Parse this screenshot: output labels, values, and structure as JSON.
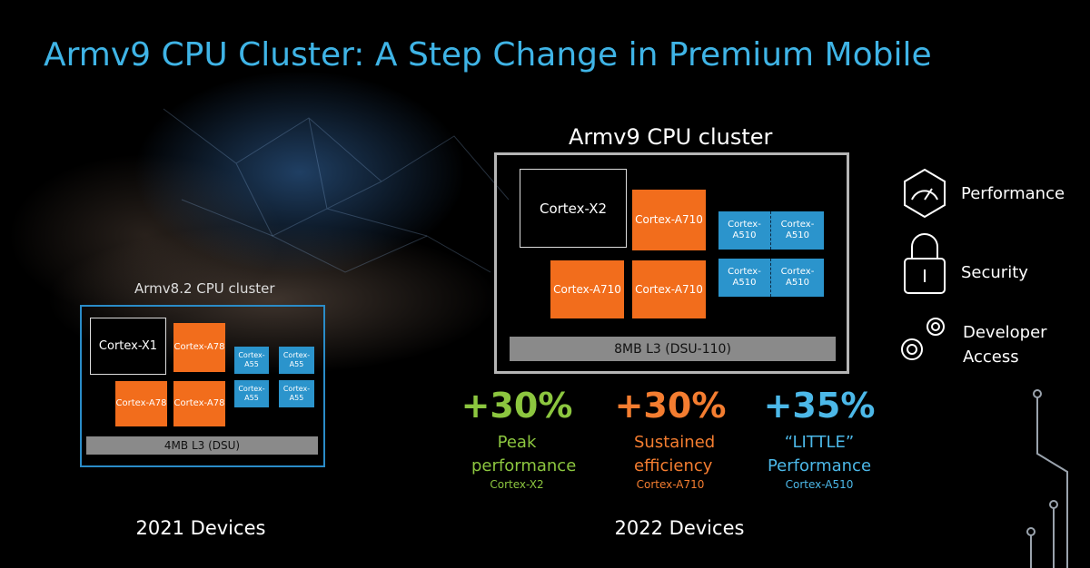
{
  "title": "Armv9 CPU Cluster: A Step Change in Premium Mobile",
  "left_cluster": {
    "label": "Armv8.2 CPU cluster",
    "cores": [
      "Cortex-X1",
      "Cortex-A78",
      "Cortex-A78",
      "Cortex-A78",
      "Cortex-A55",
      "Cortex-A55",
      "Cortex-A55",
      "Cortex-A55"
    ],
    "cache": "4MB L3 (DSU)"
  },
  "right_cluster": {
    "label": "Armv9 CPU cluster",
    "cores": [
      "Cortex-X2",
      "Cortex-A710",
      "Cortex-A710",
      "Cortex-A710",
      "Cortex-A510",
      "Cortex-A510",
      "Cortex-A510",
      "Cortex-A510"
    ],
    "cache": "8MB L3 (DSU-110)"
  },
  "stats": [
    {
      "value": "+30%",
      "caption": "Peak performance",
      "core": "Cortex-X2"
    },
    {
      "value": "+30%",
      "caption": "Sustained efficiency",
      "core": "Cortex-A710"
    },
    {
      "value": "+35%",
      "caption": "“LITTLE” Performance",
      "core": "Cortex-A510"
    }
  ],
  "features": [
    "Performance",
    "Security",
    "Developer Access"
  ],
  "footers": [
    "2021 Devices",
    "2022 Devices"
  ]
}
